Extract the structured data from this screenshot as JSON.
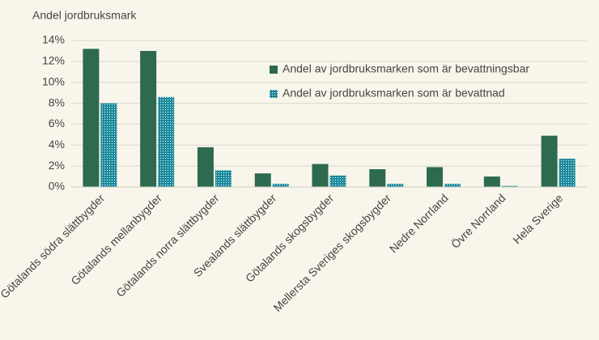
{
  "chart_data": {
    "type": "bar",
    "y_label": "Andel jordbruksmark",
    "categories": [
      "Götalands södra slättbygder",
      "Götalands mellanbygder",
      "Götalands norra slättbygder",
      "Svealands slättbygder",
      "Götalands skogsbygder",
      "Mellersta Sveriges skogsbygder",
      "Nedre Norrland",
      "Övre Norrland",
      "Hela Sverige"
    ],
    "series": [
      {
        "name": "Andel av jordbruksmarken som är bevattningsbar",
        "color": "#2d6a4f",
        "values": [
          13.2,
          13.0,
          3.8,
          1.3,
          2.2,
          1.7,
          1.9,
          1.0,
          4.9
        ]
      },
      {
        "name": "Andel av jordbruksmarken som är bevattnad",
        "color": "#1b8a9c",
        "pattern": "dots",
        "values": [
          8.0,
          8.6,
          1.6,
          0.3,
          1.1,
          0.3,
          0.3,
          0.1,
          2.7
        ]
      }
    ],
    "ylim": [
      0,
      14
    ],
    "yticks": [
      {
        "value": 0,
        "label": "0%"
      },
      {
        "value": 2,
        "label": "2%"
      },
      {
        "value": 4,
        "label": "4%"
      },
      {
        "value": 6,
        "label": "6%"
      },
      {
        "value": 8,
        "label": "8%"
      },
      {
        "value": 10,
        "label": "10%"
      },
      {
        "value": 12,
        "label": "12%"
      },
      {
        "value": 14,
        "label": "14%"
      }
    ],
    "grid": true
  }
}
